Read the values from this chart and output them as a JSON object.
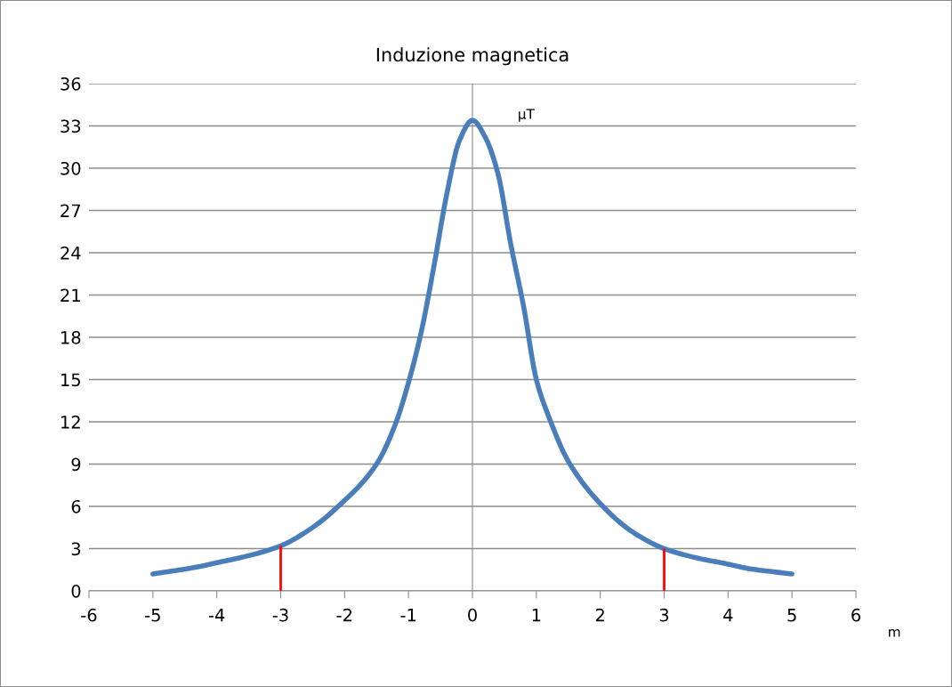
{
  "chart_data": {
    "type": "line",
    "title": "Induzione magnetica",
    "xlabel": "m",
    "ylabel": "μT",
    "xlim": [
      -6,
      6
    ],
    "xticks": [
      -6,
      -5,
      -4,
      -3,
      -2,
      -1,
      0,
      1,
      2,
      3,
      4,
      5,
      6
    ],
    "ylim": [
      0,
      36
    ],
    "yticks": [
      0,
      3,
      6,
      9,
      12,
      15,
      18,
      21,
      24,
      27,
      30,
      33,
      36
    ],
    "grid": "y",
    "legend": false,
    "marker": "none",
    "line_style": "solid",
    "series": [
      {
        "color": "#4a7ebb",
        "x": [
          -5,
          -4.3,
          -4,
          -3.5,
          -3,
          -2.5,
          -2.1,
          -1.5,
          -1.2,
          -1,
          -0.8,
          -0.6,
          -0.4,
          -0.2,
          0,
          0.2,
          0.4,
          0.6,
          0.8,
          1,
          1.2,
          1.5,
          2,
          2.5,
          3,
          3.5,
          4,
          4.3,
          5
        ],
        "values": [
          1.2,
          1.7,
          2.0,
          2.5,
          3.2,
          4.5,
          6.0,
          9.0,
          11.9,
          14.8,
          18.4,
          23.1,
          28.2,
          32.0,
          33.4,
          32.2,
          29.6,
          24.6,
          20.2,
          15.0,
          12.3,
          9.2,
          6.2,
          4.2,
          3.0,
          2.35,
          1.9,
          1.6,
          1.2
        ]
      },
      {
        "color": "#ff0000",
        "x": [
          -3,
          -3
        ],
        "values": [
          0,
          3.2
        ]
      },
      {
        "color": "#ff0000",
        "x": [
          3,
          3
        ],
        "values": [
          0,
          3.0
        ]
      }
    ]
  }
}
